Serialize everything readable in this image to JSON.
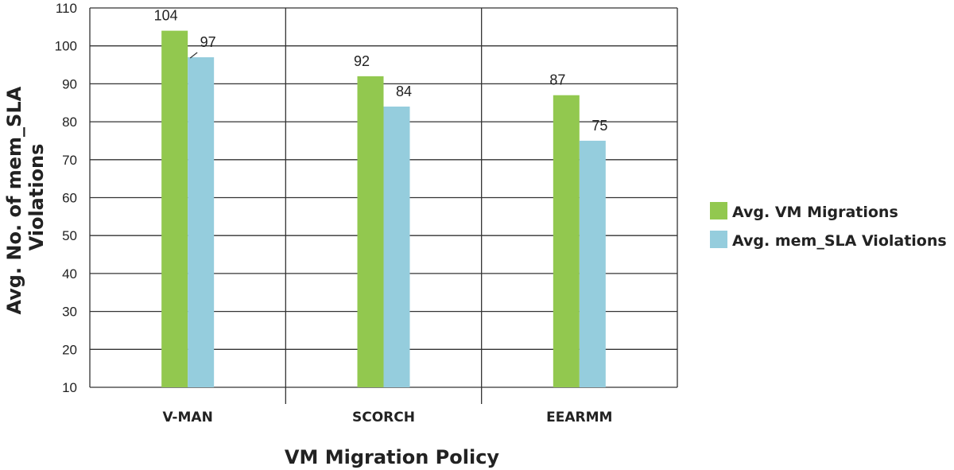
{
  "chart_data": {
    "type": "bar",
    "title": "",
    "xlabel": "VM Migration Policy",
    "ylabel": "Avg. No. of mem_SLA Violations",
    "ylim": [
      10,
      110
    ],
    "yticks": [
      10,
      20,
      30,
      40,
      50,
      60,
      70,
      80,
      90,
      100,
      110
    ],
    "grid": true,
    "legend_position": "right",
    "categories": [
      "V-MAN",
      "SCORCH",
      "EEARMM"
    ],
    "series": [
      {
        "name": "Avg. VM Migrations",
        "color": "#92c84f",
        "values": [
          104,
          92,
          87
        ]
      },
      {
        "name": "Avg. mem_SLA Violations",
        "color": "#95cddd",
        "values": [
          97,
          84,
          75
        ]
      }
    ]
  }
}
